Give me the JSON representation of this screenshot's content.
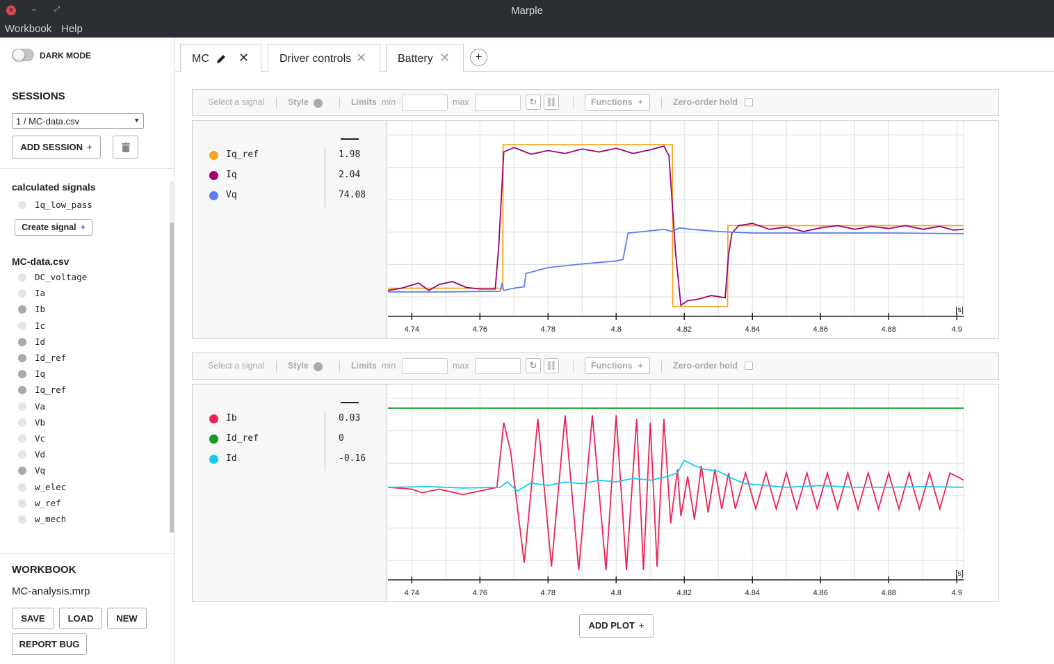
{
  "window": {
    "title": "Marple"
  },
  "menu": {
    "items": [
      "Workbook",
      "Help"
    ]
  },
  "sidebar": {
    "dark_mode_label": "DARK MODE",
    "sessions_title": "SESSIONS",
    "session_select": "1 / MC-data.csv",
    "add_session_label": "ADD SESSION",
    "plus": "+",
    "calculated_title": "calculated signals",
    "calculated_signals": [
      {
        "name": "Iq_low_pass",
        "active": false
      }
    ],
    "create_signal_label": "Create signal",
    "file_title": "MC-data.csv",
    "signals": [
      {
        "name": "DC_voltage",
        "active": false
      },
      {
        "name": "Ia",
        "active": false
      },
      {
        "name": "Ib",
        "active": true
      },
      {
        "name": "Ic",
        "active": false
      },
      {
        "name": "Id",
        "active": true
      },
      {
        "name": "Id_ref",
        "active": true
      },
      {
        "name": "Iq",
        "active": true
      },
      {
        "name": "Iq_ref",
        "active": true
      },
      {
        "name": "Va",
        "active": false
      },
      {
        "name": "Vb",
        "active": false
      },
      {
        "name": "Vc",
        "active": false
      },
      {
        "name": "Vd",
        "active": false
      },
      {
        "name": "Vq",
        "active": true
      },
      {
        "name": "w_elec",
        "active": false
      },
      {
        "name": "w_ref",
        "active": false
      },
      {
        "name": "w_mech",
        "active": false
      }
    ],
    "workbook_title": "WORKBOOK",
    "workbook_name": "MC-analysis.mrp",
    "save_label": "SAVE",
    "load_label": "LOAD",
    "new_label": "NEW",
    "report_bug_label": "REPORT BUG"
  },
  "tabs": [
    {
      "label": "MC",
      "active": true
    },
    {
      "label": "Driver controls",
      "active": false
    },
    {
      "label": "Battery",
      "active": false
    }
  ],
  "toolbar": {
    "select_signal": "Select a signal",
    "style": "Style",
    "limits": "Limits",
    "min": "min",
    "max": "max",
    "functions": "Functions",
    "zero_order_hold": "Zero-order hold"
  },
  "plots": [
    {
      "legend": [
        {
          "name": "Iq_ref",
          "value": "1.98",
          "color": "#f5a623"
        },
        {
          "name": "Iq",
          "value": "2.04",
          "color": "#990077"
        },
        {
          "name": "Vq",
          "value": "74.08",
          "color": "#5b7cf5"
        }
      ]
    },
    {
      "legend": [
        {
          "name": "Ib",
          "value": "0.03",
          "color": "#ee2255"
        },
        {
          "name": "Id_ref",
          "value": "0",
          "color": "#119922"
        },
        {
          "name": "Id",
          "value": "-0.16",
          "color": "#11ccee"
        }
      ]
    }
  ],
  "add_plot_label": "ADD PLOT",
  "chart_data": [
    {
      "type": "line",
      "xlabel": "[s]",
      "xticks": [
        "4.74",
        "4.76",
        "4.78",
        "4.8",
        "4.82",
        "4.84",
        "4.86",
        "4.88",
        "4.9"
      ],
      "xlim": [
        4.733,
        4.902
      ],
      "series": [
        {
          "name": "Iq_ref",
          "color": "#f5a623",
          "x": [
            4.733,
            4.7667,
            4.7668,
            4.8165,
            4.8166,
            4.8327,
            4.8328,
            4.902
          ],
          "y": [
            0.05,
            0.05,
            2.0,
            2.0,
            -0.2,
            -0.2,
            0.9,
            0.9
          ]
        },
        {
          "name": "Iq",
          "color": "#990077",
          "x": [
            4.733,
            4.737,
            4.742,
            4.745,
            4.748,
            4.752,
            4.756,
            4.76,
            4.7645,
            4.7655,
            4.767,
            4.77,
            4.775,
            4.78,
            4.785,
            4.79,
            4.795,
            4.8,
            4.805,
            4.81,
            4.814,
            4.8155,
            4.8175,
            4.819,
            4.821,
            4.824,
            4.828,
            4.832,
            4.833,
            4.834,
            4.836,
            4.84,
            4.845,
            4.85,
            4.855,
            4.86,
            4.865,
            4.87,
            4.875,
            4.88,
            4.885,
            4.89,
            4.895,
            4.899,
            4.902
          ],
          "y": [
            0.02,
            0.05,
            0.12,
            0.02,
            0.1,
            0.14,
            0.06,
            0.04,
            0.04,
            0.6,
            1.9,
            1.96,
            1.87,
            1.92,
            1.88,
            1.94,
            1.9,
            1.95,
            1.88,
            1.93,
            1.98,
            1.85,
            0.5,
            -0.18,
            -0.12,
            -0.1,
            -0.05,
            -0.08,
            0.5,
            0.8,
            0.9,
            0.93,
            0.85,
            0.88,
            0.82,
            0.87,
            0.9,
            0.85,
            0.89,
            0.86,
            0.9,
            0.85,
            0.89,
            0.84,
            0.85
          ]
        },
        {
          "name": "Vq",
          "color": "#5b7cf5",
          "x": [
            4.733,
            4.75,
            4.766,
            4.7665,
            4.767,
            4.77,
            4.773,
            4.7735,
            4.78,
            4.79,
            4.8,
            4.802,
            4.8035,
            4.808,
            4.814,
            4.8165,
            4.8185,
            4.822,
            4.83,
            4.84,
            4.86,
            4.88,
            4.902
          ],
          "y": [
            0.0,
            0.0,
            0.01,
            0.12,
            0.02,
            0.05,
            0.07,
            0.25,
            0.33,
            0.38,
            0.42,
            0.44,
            0.8,
            0.82,
            0.85,
            0.82,
            0.87,
            0.85,
            0.82,
            0.8,
            0.8,
            0.8,
            0.79
          ]
        }
      ]
    },
    {
      "type": "line",
      "xlabel": "[s]",
      "xticks": [
        "4.74",
        "4.76",
        "4.78",
        "4.8",
        "4.82",
        "4.84",
        "4.86",
        "4.88",
        "4.9"
      ],
      "xlim": [
        4.733,
        4.902
      ],
      "series": [
        {
          "name": "Ib",
          "color": "#ee2255",
          "x": [
            4.733,
            4.74,
            4.743,
            4.748,
            4.755,
            4.76,
            4.765,
            4.767,
            4.769,
            4.773,
            4.777,
            4.781,
            4.785,
            4.789,
            4.793,
            4.797,
            4.8,
            4.803,
            4.806,
            4.808,
            4.81,
            4.812,
            4.814,
            4.816,
            4.818,
            4.819,
            4.821,
            4.823,
            4.825,
            4.827,
            4.829,
            4.831,
            4.833,
            4.835,
            4.838,
            4.841,
            4.844,
            4.847,
            4.85,
            4.853,
            4.856,
            4.859,
            4.862,
            4.865,
            4.868,
            4.871,
            4.874,
            4.877,
            4.88,
            4.883,
            4.886,
            4.889,
            4.892,
            4.895,
            4.898,
            4.902
          ],
          "y": [
            0.0,
            -0.05,
            -0.15,
            -0.05,
            -0.2,
            -0.1,
            0.0,
            1.8,
            1.0,
            -2.1,
            1.9,
            -2.2,
            2.0,
            -2.3,
            2.0,
            -2.3,
            2.0,
            -2.3,
            1.9,
            -2.3,
            1.8,
            -2.2,
            1.9,
            -1.0,
            0.5,
            -0.8,
            0.3,
            -0.9,
            0.6,
            -0.7,
            0.5,
            -0.6,
            0.4,
            -0.6,
            0.4,
            -0.6,
            0.4,
            -0.6,
            0.4,
            -0.6,
            0.4,
            -0.6,
            0.4,
            -0.6,
            0.4,
            -0.6,
            0.4,
            -0.6,
            0.4,
            -0.6,
            0.4,
            -0.6,
            0.4,
            -0.6,
            0.4,
            0.2
          ]
        },
        {
          "name": "Id_ref",
          "color": "#119922",
          "x": [
            4.733,
            4.902
          ],
          "y": [
            2.2,
            2.2
          ]
        },
        {
          "name": "Id",
          "color": "#11ccee",
          "x": [
            4.733,
            4.745,
            4.755,
            4.766,
            4.768,
            4.771,
            4.775,
            4.78,
            4.785,
            4.79,
            4.795,
            4.8,
            4.805,
            4.81,
            4.815,
            4.818,
            4.82,
            4.823,
            4.826,
            4.83,
            4.834,
            4.838,
            4.844,
            4.85,
            4.86,
            4.87,
            4.88,
            4.89,
            4.902
          ],
          "y": [
            0.0,
            0.02,
            -0.02,
            0.0,
            0.15,
            -0.1,
            0.12,
            0.05,
            0.15,
            0.1,
            0.2,
            0.15,
            0.25,
            0.2,
            0.3,
            0.4,
            0.75,
            0.6,
            0.5,
            0.45,
            0.25,
            0.1,
            0.05,
            0.0,
            0.05,
            0.0,
            0.0,
            0.02,
            0.0
          ]
        }
      ]
    }
  ]
}
